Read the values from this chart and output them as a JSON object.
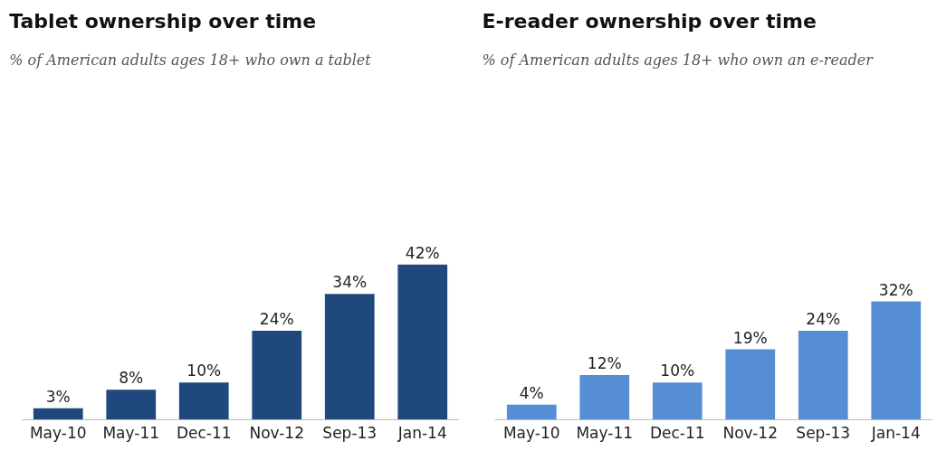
{
  "chart_data": [
    {
      "type": "bar",
      "title": "Tablet ownership over time",
      "subtitle": "% of American adults ages 18+ who own a tablet",
      "categories": [
        "May-10",
        "May-11",
        "Dec-11",
        "Nov-12",
        "Sep-13",
        "Jan-14"
      ],
      "values": [
        3,
        8,
        10,
        24,
        34,
        42
      ],
      "value_labels": [
        "3%",
        "8%",
        "10%",
        "24%",
        "34%",
        "42%"
      ],
      "color": "#1f497d",
      "grid": false,
      "legend": false
    },
    {
      "type": "bar",
      "title": "E-reader ownership over time",
      "subtitle": "% of American adults ages 18+ who own an e-reader",
      "categories": [
        "May-10",
        "May-11",
        "Dec-11",
        "Nov-12",
        "Sep-13",
        "Jan-14"
      ],
      "values": [
        4,
        12,
        10,
        19,
        24,
        32
      ],
      "value_labels": [
        "4%",
        "12%",
        "10%",
        "19%",
        "24%",
        "32%"
      ],
      "color": "#558ed5",
      "grid": false,
      "legend": false
    }
  ]
}
